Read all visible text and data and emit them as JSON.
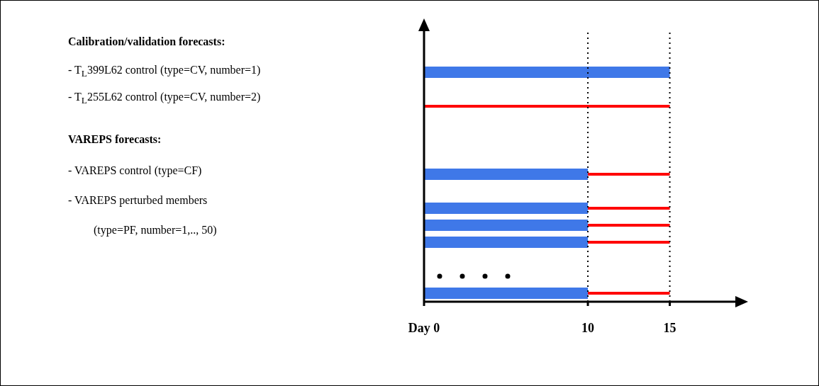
{
  "chart_data": {
    "type": "bar",
    "orientation": "horizontal",
    "stacked": true,
    "categories": [
      null,
      null,
      null,
      null,
      null,
      null,
      null,
      null,
      null,
      null,
      null,
      null,
      null,
      null,
      null,
      null
    ],
    "series": [
      {
        "color": "#3f78e8",
        "values": [
          null,
          null,
          15,
          null,
          null,
          null,
          null,
          null,
          10,
          null,
          10,
          10,
          10,
          null,
          null,
          10
        ]
      },
      {
        "color": "#ff0000",
        "values": [
          null,
          null,
          null,
          null,
          15,
          null,
          null,
          null,
          5,
          null,
          5,
          5,
          5,
          null,
          null,
          5
        ]
      }
    ],
    "xlim": [
      0,
      19
    ],
    "xticks": [
      {
        "value": 0,
        "label": "Day 0"
      },
      10,
      15
    ],
    "ref_lines": [
      {
        "axis": "x",
        "value": 10,
        "color": "#000000",
        "line_style": "dotted"
      },
      {
        "axis": "x",
        "value": 15,
        "color": "#000000",
        "line_style": "dotted"
      }
    ],
    "grid": false,
    "legend": false,
    "annotations": [
      "Calibration/validation forecasts:",
      "- T$_{L}$399L62 control (type=CV, number=1)",
      "- T$_{L}$255L62 control (type=CV, number=2)",
      "VAREPS forecasts:",
      "- VAREPS control (type=CF)",
      "- VAREPS perturbed members",
      "(type=PF, number=1,.., 50)"
    ]
  }
}
